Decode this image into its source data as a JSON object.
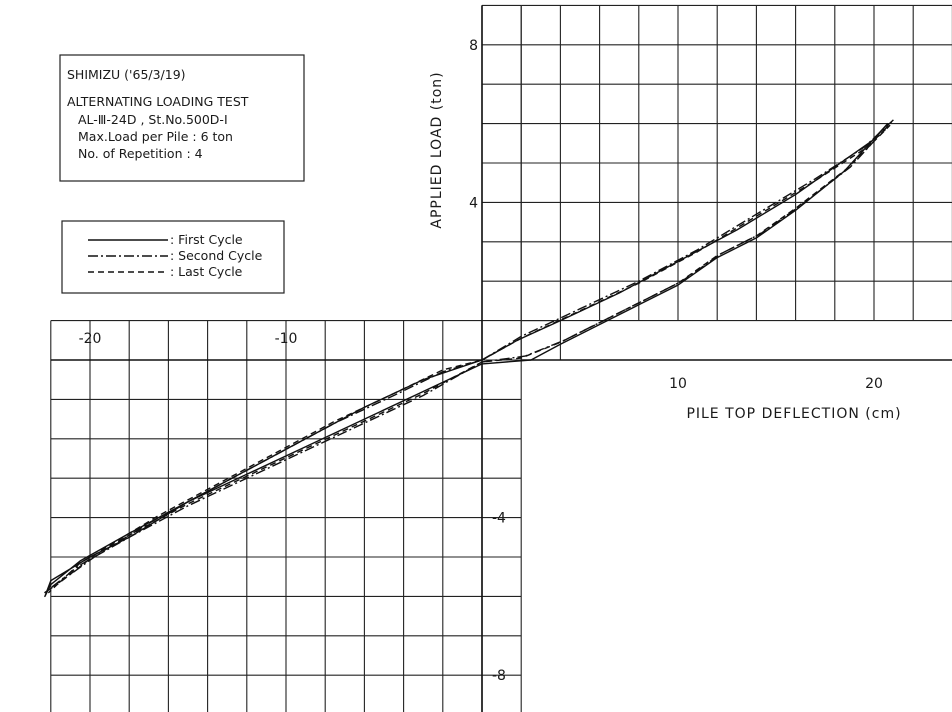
{
  "chart_data": {
    "type": "line",
    "title": "",
    "xlabel": "PILE TOP DEFLECTION (cm)",
    "ylabel": "APPLIED LOAD (ton)",
    "xlim": [
      -24,
      25
    ],
    "ylim": [
      -9,
      9
    ],
    "x_ticks": [
      -20,
      -10,
      10,
      20
    ],
    "x_tick_labels": [
      "-20",
      "-10",
      "10",
      "20"
    ],
    "y_ticks": [
      8,
      4,
      -4,
      -8
    ],
    "y_tick_labels": [
      "8",
      "4",
      "-4",
      "-8"
    ],
    "grid": true,
    "legend_position": "upper-left",
    "series": [
      {
        "name": "First Cycle",
        "style": "solid",
        "x": [
          0,
          1.8,
          4,
          7,
          10,
          13,
          16,
          18,
          20,
          20.7,
          18.5,
          16,
          14,
          12,
          10,
          8,
          6,
          4,
          2.5,
          0,
          -3,
          -6,
          -9,
          -12,
          -15,
          -18,
          -20.5,
          -22,
          -22.3,
          -22,
          -20,
          -18,
          -15,
          -12,
          -9,
          -6,
          -3,
          0
        ],
        "y": [
          0,
          0.5,
          1.0,
          1.7,
          2.5,
          3.3,
          4.2,
          4.9,
          5.6,
          6.0,
          4.8,
          3.8,
          3.1,
          2.6,
          1.9,
          1.4,
          0.9,
          0.4,
          0.0,
          -0.1,
          -0.8,
          -1.5,
          -2.2,
          -2.9,
          -3.6,
          -4.4,
          -5.1,
          -5.7,
          -6.0,
          -5.6,
          -5.0,
          -4.5,
          -3.6,
          -2.8,
          -2.0,
          -1.2,
          -0.5,
          0
        ]
      },
      {
        "name": "Second Cycle",
        "style": "dash-dot",
        "x": [
          0,
          2,
          5,
          8,
          11,
          14,
          17,
          19.5,
          21,
          18.8,
          16.2,
          14.2,
          12.2,
          10.2,
          8.2,
          6.2,
          4.2,
          2.2,
          0,
          -3,
          -6,
          -9,
          -12,
          -15,
          -18,
          -20.5,
          -22.3,
          -22,
          -19.5,
          -16.5,
          -13.5,
          -10.5,
          -7.5,
          -4.5,
          -2,
          0
        ],
        "y": [
          0,
          0.6,
          1.3,
          2.0,
          2.8,
          3.7,
          4.6,
          5.4,
          6.1,
          4.9,
          3.9,
          3.2,
          2.7,
          2.0,
          1.5,
          1.0,
          0.5,
          0.1,
          -0.05,
          -0.9,
          -1.6,
          -2.3,
          -3.0,
          -3.7,
          -4.5,
          -5.2,
          -5.9,
          -5.8,
          -4.9,
          -4.0,
          -3.2,
          -2.4,
          -1.6,
          -0.9,
          -0.3,
          0
        ]
      },
      {
        "name": "Last Cycle",
        "style": "dashed",
        "x": [
          0,
          2,
          5,
          8,
          11,
          14,
          17,
          19.5,
          20.8,
          18.6,
          16,
          14,
          12,
          10,
          8,
          6,
          4,
          2,
          0,
          -3,
          -6,
          -9,
          -12,
          -15,
          -18,
          -20.5,
          -22.1,
          -21.8,
          -19.5,
          -16.5,
          -13.5,
          -10.5,
          -7.5,
          -4.5,
          -2,
          0
        ],
        "y": [
          0,
          0.55,
          1.25,
          1.95,
          2.75,
          3.65,
          4.55,
          5.35,
          5.95,
          4.85,
          3.85,
          3.15,
          2.65,
          1.95,
          1.45,
          0.95,
          0.45,
          0.05,
          -0.05,
          -0.85,
          -1.55,
          -2.25,
          -2.95,
          -3.65,
          -4.45,
          -5.15,
          -5.9,
          -5.75,
          -4.85,
          -3.95,
          -3.15,
          -2.35,
          -1.55,
          -0.85,
          -0.25,
          0
        ]
      }
    ]
  },
  "info_box": {
    "line1": "SHIMIZU ('65/3/19)",
    "line2": "ALTERNATING LOADING TEST",
    "line3": "AL-Ⅲ-24D  , St.No.500D-I",
    "line4": "Max.Load per Pile : 6 ton",
    "line5": "No. of Repetition : 4"
  },
  "legend": {
    "items": [
      {
        "label": ": First Cycle",
        "style": "solid"
      },
      {
        "label": ": Second Cycle",
        "style": "dash-dot"
      },
      {
        "label": ": Last Cycle",
        "style": "dashed"
      }
    ]
  }
}
